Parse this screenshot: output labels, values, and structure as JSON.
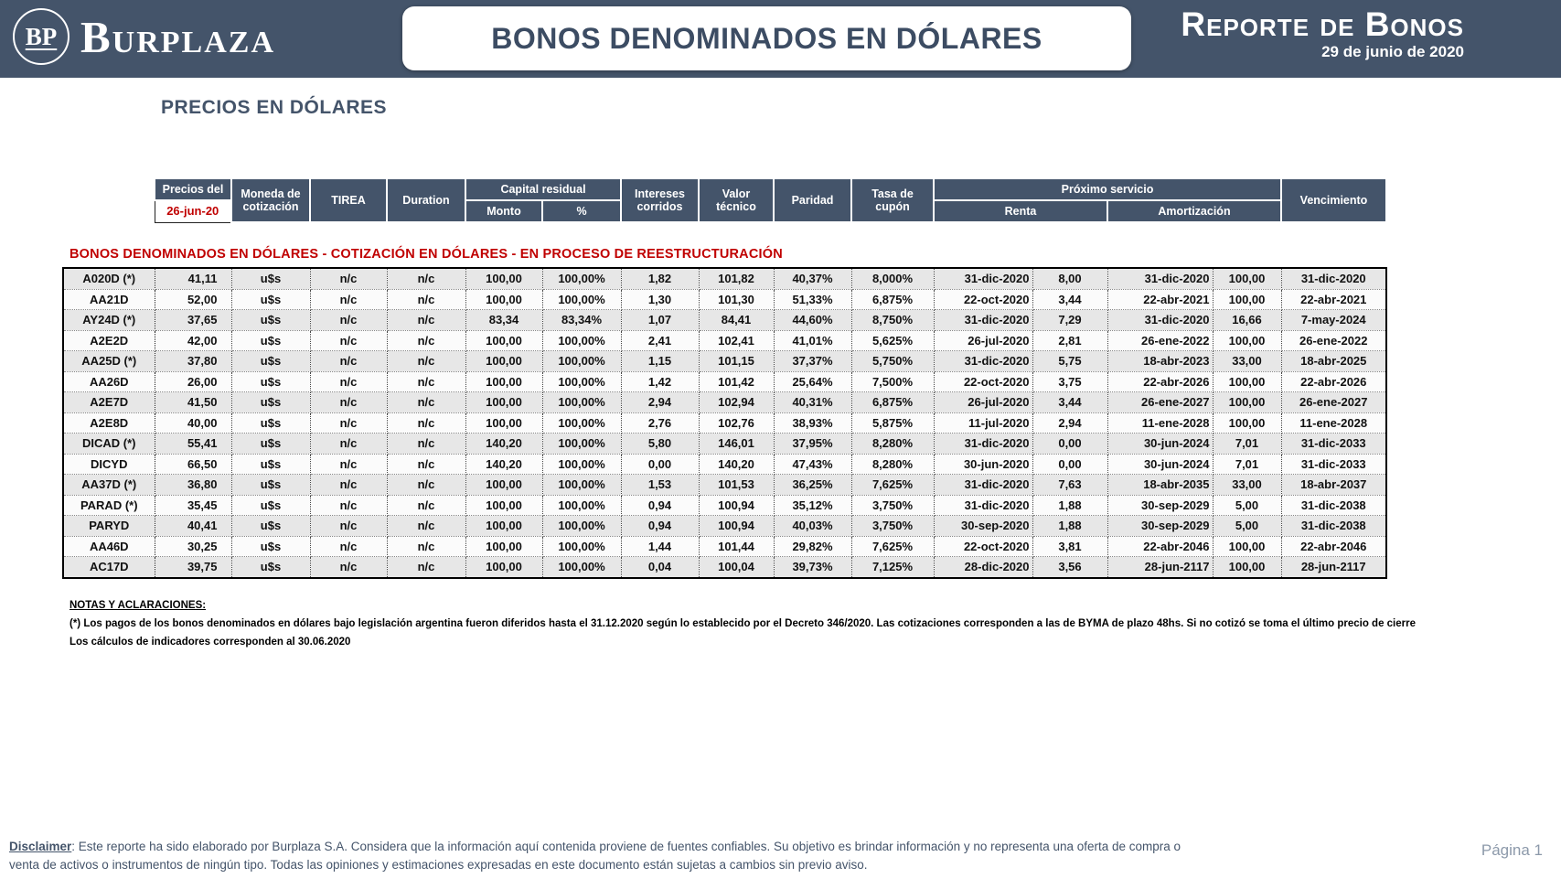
{
  "colors": {
    "header_bg": "#44546A",
    "accent_red": "#C00000",
    "row_alt": "#E7E7E7",
    "title_text": "#44546A"
  },
  "header": {
    "logo_monogram": "BP",
    "logo_name": "Burplaza",
    "title": "BONOS DENOMINADOS EN DÓLARES",
    "report_title": "Reporte de Bonos",
    "report_date": "29 de junio de 2020"
  },
  "page": {
    "section_title": "PRECIOS EN DÓLARES",
    "group_title": "BONOS DENOMINADOS EN DÓLARES - COTIZACIÓN EN DÓLARES - EN PROCESO DE REESTRUCTURACIÓN",
    "page_number": "Página 1"
  },
  "table": {
    "headers": {
      "precios_del": "Precios del",
      "price_date": "26-jun-20",
      "moneda": "Moneda de cotización",
      "tirea": "TIREA",
      "duration": "Duration",
      "capital_residual": "Capital residual",
      "monto": "Monto",
      "pct": "%",
      "intereses": "Intereses corridos",
      "valor_tecnico": "Valor técnico",
      "paridad": "Paridad",
      "tasa_cupon": "Tasa de cupón",
      "proximo_servicio": "Próximo servicio",
      "renta": "Renta",
      "amortizacion": "Amortización",
      "vencimiento": "Vencimiento"
    },
    "rows": [
      [
        "A020D (*)",
        "41,11",
        "u$s",
        "n/c",
        "n/c",
        "100,00",
        "100,00%",
        "1,82",
        "101,82",
        "40,37%",
        "8,000%",
        "31-dic-2020",
        "8,00",
        "31-dic-2020",
        "100,00",
        "31-dic-2020"
      ],
      [
        "AA21D",
        "52,00",
        "u$s",
        "n/c",
        "n/c",
        "100,00",
        "100,00%",
        "1,30",
        "101,30",
        "51,33%",
        "6,875%",
        "22-oct-2020",
        "3,44",
        "22-abr-2021",
        "100,00",
        "22-abr-2021"
      ],
      [
        "AY24D (*)",
        "37,65",
        "u$s",
        "n/c",
        "n/c",
        "83,34",
        "83,34%",
        "1,07",
        "84,41",
        "44,60%",
        "8,750%",
        "31-dic-2020",
        "7,29",
        "31-dic-2020",
        "16,66",
        "7-may-2024"
      ],
      [
        "A2E2D",
        "42,00",
        "u$s",
        "n/c",
        "n/c",
        "100,00",
        "100,00%",
        "2,41",
        "102,41",
        "41,01%",
        "5,625%",
        "26-jul-2020",
        "2,81",
        "26-ene-2022",
        "100,00",
        "26-ene-2022"
      ],
      [
        "AA25D (*)",
        "37,80",
        "u$s",
        "n/c",
        "n/c",
        "100,00",
        "100,00%",
        "1,15",
        "101,15",
        "37,37%",
        "5,750%",
        "31-dic-2020",
        "5,75",
        "18-abr-2023",
        "33,00",
        "18-abr-2025"
      ],
      [
        "AA26D",
        "26,00",
        "u$s",
        "n/c",
        "n/c",
        "100,00",
        "100,00%",
        "1,42",
        "101,42",
        "25,64%",
        "7,500%",
        "22-oct-2020",
        "3,75",
        "22-abr-2026",
        "100,00",
        "22-abr-2026"
      ],
      [
        "A2E7D",
        "41,50",
        "u$s",
        "n/c",
        "n/c",
        "100,00",
        "100,00%",
        "2,94",
        "102,94",
        "40,31%",
        "6,875%",
        "26-jul-2020",
        "3,44",
        "26-ene-2027",
        "100,00",
        "26-ene-2027"
      ],
      [
        "A2E8D",
        "40,00",
        "u$s",
        "n/c",
        "n/c",
        "100,00",
        "100,00%",
        "2,76",
        "102,76",
        "38,93%",
        "5,875%",
        "11-jul-2020",
        "2,94",
        "11-ene-2028",
        "100,00",
        "11-ene-2028"
      ],
      [
        "DICAD (*)",
        "55,41",
        "u$s",
        "n/c",
        "n/c",
        "140,20",
        "100,00%",
        "5,80",
        "146,01",
        "37,95%",
        "8,280%",
        "31-dic-2020",
        "0,00",
        "30-jun-2024",
        "7,01",
        "31-dic-2033"
      ],
      [
        "DICYD",
        "66,50",
        "u$s",
        "n/c",
        "n/c",
        "140,20",
        "100,00%",
        "0,00",
        "140,20",
        "47,43%",
        "8,280%",
        "30-jun-2020",
        "0,00",
        "30-jun-2024",
        "7,01",
        "31-dic-2033"
      ],
      [
        "AA37D (*)",
        "36,80",
        "u$s",
        "n/c",
        "n/c",
        "100,00",
        "100,00%",
        "1,53",
        "101,53",
        "36,25%",
        "7,625%",
        "31-dic-2020",
        "7,63",
        "18-abr-2035",
        "33,00",
        "18-abr-2037"
      ],
      [
        "PARAD (*)",
        "35,45",
        "u$s",
        "n/c",
        "n/c",
        "100,00",
        "100,00%",
        "0,94",
        "100,94",
        "35,12%",
        "3,750%",
        "31-dic-2020",
        "1,88",
        "30-sep-2029",
        "5,00",
        "31-dic-2038"
      ],
      [
        "PARYD",
        "40,41",
        "u$s",
        "n/c",
        "n/c",
        "100,00",
        "100,00%",
        "0,94",
        "100,94",
        "40,03%",
        "3,750%",
        "30-sep-2020",
        "1,88",
        "30-sep-2029",
        "5,00",
        "31-dic-2038"
      ],
      [
        "AA46D",
        "30,25",
        "u$s",
        "n/c",
        "n/c",
        "100,00",
        "100,00%",
        "1,44",
        "101,44",
        "29,82%",
        "7,625%",
        "22-oct-2020",
        "3,81",
        "22-abr-2046",
        "100,00",
        "22-abr-2046"
      ],
      [
        "AC17D",
        "39,75",
        "u$s",
        "n/c",
        "n/c",
        "100,00",
        "100,00%",
        "0,04",
        "100,04",
        "39,73%",
        "7,125%",
        "28-dic-2020",
        "3,56",
        "28-jun-2117",
        "100,00",
        "28-jun-2117"
      ]
    ]
  },
  "notes": {
    "title": "NOTAS Y ACLARACIONES:",
    "line1": "(*) Los pagos de los bonos denominados en dólares bajo legislación argentina fueron diferidos hasta el 31.12.2020 según lo establecido por el Decreto 346/2020. Las cotizaciones corresponden a las de BYMA de plazo 48hs. Si no cotizó se toma el último precio de cierre",
    "line2": "Los cálculos de indicadores corresponden al 30.06.2020"
  },
  "footer": {
    "disclaimer_label": "Disclaimer",
    "disclaimer_text": ": Este reporte ha sido elaborado por Burplaza S.A. Considera que la información aquí contenida proviene de fuentes confiables. Su objetivo es brindar información y no representa una oferta de compra o venta de activos o instrumentos de ningún tipo. Todas las opiniones y estimaciones expresadas en este documento están sujetas a cambios sin previo aviso."
  }
}
